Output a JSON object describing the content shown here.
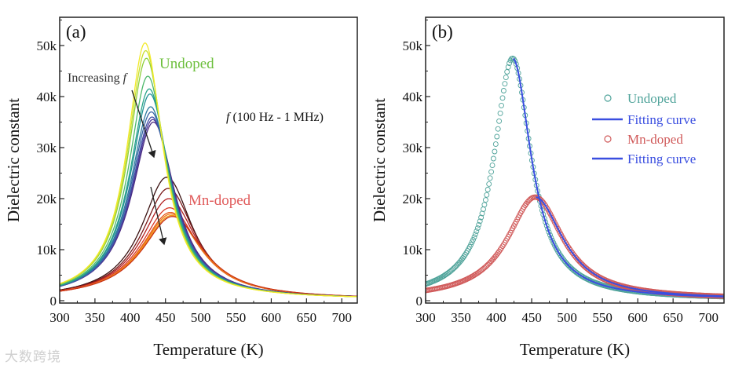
{
  "watermark": "大数跨境",
  "chart_data": [
    {
      "type": "line",
      "panel_label": "(a)",
      "xlabel": "Temperature (K)",
      "ylabel": "Dielectric constant",
      "xlim": [
        300,
        722
      ],
      "ylim": [
        0,
        55500
      ],
      "xticks": [
        300,
        350,
        400,
        450,
        500,
        550,
        600,
        650,
        700
      ],
      "xtick_labels": [
        "300",
        "350",
        "400",
        "450",
        "500",
        "550",
        "600",
        "650",
        "700"
      ],
      "yticks": [
        0,
        10000,
        20000,
        30000,
        40000,
        50000
      ],
      "ytick_labels": [
        "0",
        "10k",
        "20k",
        "30k",
        "40k",
        "50k"
      ],
      "annotations": {
        "undoped": "Undoped",
        "mn_doped": "Mn-doped",
        "increasing": "Increasing ",
        "increasing_f": "f",
        "freq_f": "f",
        "freq_range": " (100 Hz - 1 MHz)"
      },
      "colors": {
        "undoped_label": "#6cbf3c",
        "mn_label": "#e05a5a",
        "text": "#333333"
      },
      "series_undoped": [
        {
          "peak_T": 421,
          "peak": 50500,
          "width": 31,
          "color": "#f2ea2a"
        },
        {
          "peak_T": 422,
          "peak": 49000,
          "width": 31.5,
          "color": "#c9df2e"
        },
        {
          "peak_T": 423,
          "peak": 47500,
          "width": 32,
          "color": "#8fcf3c"
        },
        {
          "peak_T": 425,
          "peak": 44000,
          "width": 33,
          "color": "#4db86a"
        },
        {
          "peak_T": 427,
          "peak": 41500,
          "width": 34,
          "color": "#2aa58a"
        },
        {
          "peak_T": 428,
          "peak": 40500,
          "width": 34.5,
          "color": "#229195"
        },
        {
          "peak_T": 429,
          "peak": 38000,
          "width": 35.5,
          "color": "#2b7a9e"
        },
        {
          "peak_T": 430,
          "peak": 37000,
          "width": 36,
          "color": "#3866a5"
        },
        {
          "peak_T": 431,
          "peak": 36000,
          "width": 36.5,
          "color": "#424fa6"
        },
        {
          "peak_T": 432,
          "peak": 35500,
          "width": 37,
          "color": "#4a3a9a"
        },
        {
          "peak_T": 433,
          "peak": 35000,
          "width": 37.5,
          "color": "#4a2a80"
        }
      ],
      "series_mn": [
        {
          "peak_T": 452,
          "peak": 24200,
          "width": 44,
          "color": "#3a1010"
        },
        {
          "peak_T": 454,
          "peak": 22000,
          "width": 46,
          "color": "#7a1a1a"
        },
        {
          "peak_T": 455,
          "peak": 20000,
          "width": 48,
          "color": "#b32020"
        },
        {
          "peak_T": 456,
          "peak": 18200,
          "width": 50,
          "color": "#d93a2a"
        },
        {
          "peak_T": 457,
          "peak": 17300,
          "width": 51,
          "color": "#e55a20"
        },
        {
          "peak_T": 458,
          "peak": 17000,
          "width": 52,
          "color": "#ee7a18"
        },
        {
          "peak_T": 459,
          "peak": 16700,
          "width": 52.5,
          "color": "#f29412"
        },
        {
          "peak_T": 460,
          "peak": 16500,
          "width": 53,
          "color": "#c83018"
        }
      ]
    },
    {
      "type": "scatter",
      "panel_label": "(b)",
      "xlabel": "Temperature (K)",
      "ylabel": "Dielectric constant",
      "xlim": [
        300,
        722
      ],
      "ylim": [
        0,
        55500
      ],
      "xticks": [
        300,
        350,
        400,
        450,
        500,
        550,
        600,
        650,
        700
      ],
      "xtick_labels": [
        "300",
        "350",
        "400",
        "450",
        "500",
        "550",
        "600",
        "650",
        "700"
      ],
      "yticks": [
        0,
        10000,
        20000,
        30000,
        40000,
        50000
      ],
      "ytick_labels": [
        "0",
        "10k",
        "20k",
        "30k",
        "40k",
        "50k"
      ],
      "legend_position": "center-right",
      "legend": [
        {
          "label": "Undoped",
          "kind": "marker",
          "color": "#4fa39a"
        },
        {
          "label": "Fitting curve",
          "kind": "line",
          "color": "#3a4ee0"
        },
        {
          "label": "Mn-doped",
          "kind": "marker",
          "color": "#d05a5a"
        },
        {
          "label": "Fitting curve",
          "kind": "line",
          "color": "#3a4ee0"
        }
      ],
      "series": [
        {
          "name": "Undoped",
          "peak_T": 423,
          "peak": 47500,
          "width": 32,
          "color": "#4fa39a",
          "fit_from": 424
        },
        {
          "name": "Mn-doped",
          "peak_T": 455,
          "peak": 20300,
          "width": 48,
          "color": "#d05a5a",
          "fit_from": 456
        }
      ]
    }
  ]
}
